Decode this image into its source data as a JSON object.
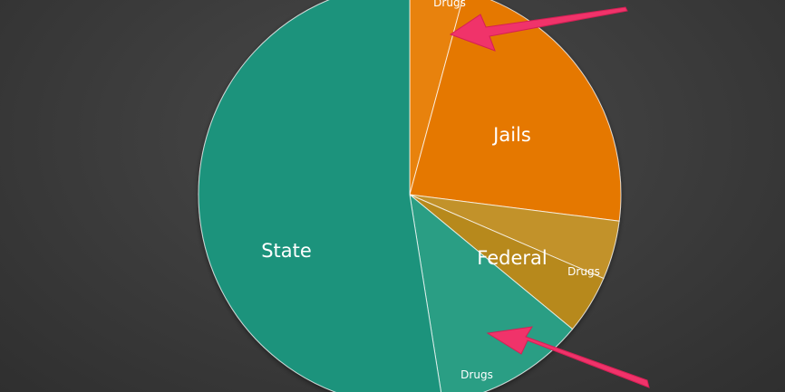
{
  "chart_data": {
    "type": "pie",
    "title": "",
    "slices": [
      {
        "key": "jails_drugs",
        "label": "Drugs",
        "value": 4.2,
        "color": "#e8820c"
      },
      {
        "key": "jails",
        "label": "Jails",
        "value": 22.8,
        "color": "#e57800"
      },
      {
        "key": "federal_drugs",
        "label": "Drugs",
        "value": 4.5,
        "color": "#c2922a"
      },
      {
        "key": "federal",
        "label": "Federal",
        "value": 4.5,
        "color": "#b7891f"
      },
      {
        "key": "state_drugs",
        "label": "Drugs",
        "value": 11.5,
        "color": "#2a9e84"
      },
      {
        "key": "state",
        "label": "State",
        "value": 52.5,
        "color": "#1d937c"
      }
    ],
    "annotations": [
      {
        "type": "arrow",
        "points_to": "Jails / Drugs",
        "color": "#f0336a"
      },
      {
        "type": "arrow",
        "points_to": "State / Drugs",
        "color": "#f0336a"
      }
    ],
    "legend": "none",
    "grid": false
  }
}
